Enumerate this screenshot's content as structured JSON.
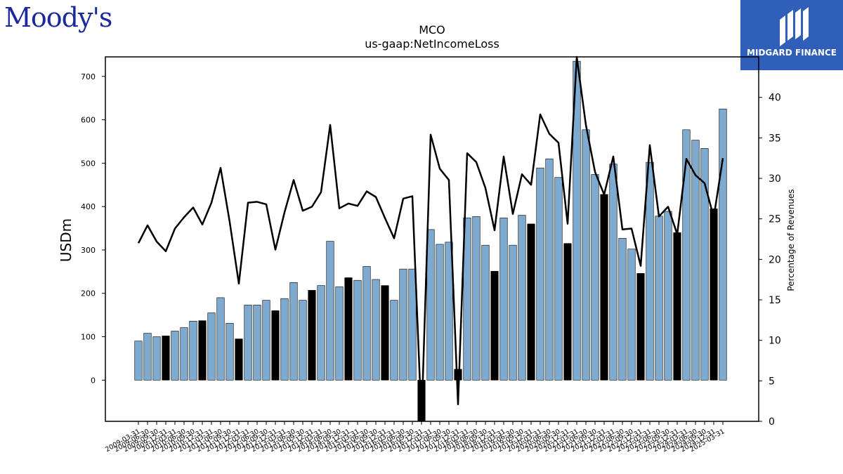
{
  "logos": {
    "left": "Moody's",
    "right": "MIDGARD FINANCE"
  },
  "chart_data": {
    "type": "bar",
    "title": "MCO",
    "subtitle": "us-gaap:NetIncomeLoss",
    "ylabel": "USDm",
    "y2label": "Percentage of Revenues",
    "ylim": [
      -95,
      745
    ],
    "y2lim": [
      0,
      45
    ],
    "y_ticks": [
      0,
      100,
      200,
      300,
      400,
      500,
      600,
      700
    ],
    "y2_ticks": [
      0,
      5,
      10,
      15,
      20,
      25,
      30,
      35,
      40
    ],
    "grid": false,
    "colors": {
      "quarter_bar": "#7eaad0",
      "fy_bar": "#000000",
      "line": "#000000"
    },
    "categories": [
      "2009-03-31",
      "2009-06-30",
      "2009-09-30",
      "2009-12-31",
      "2010-03-31",
      "2010-06-30",
      "2010-09-30",
      "2010-12-31",
      "2011-03-31",
      "2011-06-30",
      "2011-09-30",
      "2011-12-31",
      "2012-03-31",
      "2012-06-30",
      "2012-09-30",
      "2012-12-31",
      "2013-03-31",
      "2013-06-30",
      "2013-09-30",
      "2013-12-31",
      "2014-03-31",
      "2014-06-30",
      "2014-09-30",
      "2014-12-31",
      "2015-03-31",
      "2015-06-30",
      "2015-09-30",
      "2015-12-31",
      "2016-03-31",
      "2016-06-30",
      "2016-09-30",
      "2016-12-31",
      "2017-03-31",
      "2017-06-30",
      "2017-09-30",
      "2017-12-31",
      "2018-03-31",
      "2018-06-30",
      "2018-09-30",
      "2018-12-31",
      "2019-03-31",
      "2019-06-30",
      "2019-09-30",
      "2019-12-31",
      "2020-03-31",
      "2020-06-30",
      "2020-09-30",
      "2020-12-31",
      "2021-03-31",
      "2021-06-30",
      "2021-09-30",
      "2021-12-31",
      "2022-03-31",
      "2022-06-30",
      "2022-09-30",
      "2022-12-31",
      "2023-03-31",
      "2023-06-30",
      "2023-09-30",
      "2023-12-31",
      "2024-03-31",
      "2024-06-30",
      "2024-09-30",
      "2024-12-31",
      "2025-03-31"
    ],
    "x_tick_labels": [
      "2009-03-31",
      "2009-06-30",
      "2009-09-30",
      "2009-12-31",
      "2010-03-31",
      "2010-06-30",
      "2010-09-30",
      "2010-12-31",
      "2011-03-31",
      "2011-06-30",
      "2011-09-30",
      "2011-12-31",
      "2012-03-31",
      "2012-06-30",
      "2012-09-30",
      "2012-12-31",
      "2013-03-31",
      "2013-06-30",
      "2013-09-30",
      "2013-12-31",
      "2014-03-31",
      "2014-06-30",
      "2014-09-30",
      "2014-12-31",
      "2015-03-31",
      "2015-06-30",
      "2015-09-30",
      "2015-12-31",
      "2016-03-31",
      "2016-06-30",
      "2016-09-30",
      "2016-12-31",
      "2017-03-31",
      "2017-06-30",
      "2017-09-30",
      "2017-12-31",
      "2018-03-31",
      "2018-06-30",
      "2018-09-30",
      "2018-12-31",
      "2019-03-31",
      "2019-06-30",
      "2019-09-30",
      "2019-12-31",
      "2020-03-31",
      "2020-06-30",
      "2020-09-30",
      "2020-12-31",
      "2021-03-31",
      "2021-06-30",
      "2021-09-30",
      "2021-12-31",
      "2022-03-31",
      "2022-06-30",
      "2022-09-30",
      "2022-12-31",
      "2023-03-31",
      "2023-06-30",
      "2023-09-30",
      "2023-12-31",
      "2024-03-31",
      "2024-06-30",
      "2024-09-30",
      "2024-12-31",
      "2025-03-31"
    ],
    "values": [
      90,
      108,
      100,
      102,
      113,
      121,
      136,
      137,
      155,
      190,
      131,
      95,
      173,
      173,
      184,
      160,
      188,
      225,
      184,
      207,
      218,
      320,
      215,
      236,
      230,
      262,
      232,
      218,
      184,
      256,
      256,
      -95,
      347,
      313,
      318,
      25,
      374,
      377,
      311,
      251,
      374,
      311,
      380,
      360,
      489,
      510,
      467,
      315,
      735,
      577,
      474,
      428,
      498,
      327,
      302,
      246,
      502,
      378,
      389,
      340,
      577,
      553,
      534,
      395,
      625
    ],
    "is_fiscal_year_end": [
      false,
      false,
      false,
      true,
      false,
      false,
      false,
      true,
      false,
      false,
      false,
      true,
      false,
      false,
      false,
      true,
      false,
      false,
      false,
      true,
      false,
      false,
      false,
      true,
      false,
      false,
      false,
      true,
      false,
      false,
      false,
      true,
      false,
      false,
      false,
      true,
      false,
      false,
      false,
      true,
      false,
      false,
      false,
      true,
      false,
      false,
      false,
      true,
      false,
      false,
      false,
      true,
      false,
      false,
      false,
      true,
      false,
      false,
      false,
      true,
      false,
      false,
      false,
      true,
      false
    ],
    "series": [
      {
        "values": [
          90,
          108,
          100,
          102,
          113,
          121,
          136,
          137,
          155,
          190,
          131,
          95,
          173,
          173,
          184,
          160,
          188,
          225,
          184,
          207,
          218,
          320,
          215,
          236,
          230,
          262,
          232,
          218,
          184,
          256,
          256,
          -95,
          347,
          313,
          318,
          25,
          374,
          377,
          311,
          251,
          374,
          311,
          380,
          360,
          489,
          510,
          467,
          315,
          735,
          577,
          474,
          428,
          498,
          327,
          302,
          246,
          502,
          378,
          389,
          340,
          577,
          553,
          534,
          395,
          625
        ],
        "axis": "left",
        "type": "bar"
      },
      {
        "values": [
          22.0,
          24.2,
          22.2,
          21.0,
          23.8,
          25.2,
          26.4,
          24.3,
          27.0,
          31.3,
          24.6,
          17.0,
          27.0,
          27.1,
          26.8,
          21.2,
          25.8,
          29.8,
          26.0,
          26.5,
          28.3,
          36.6,
          26.3,
          26.9,
          26.6,
          28.4,
          27.7,
          25.1,
          22.6,
          27.5,
          27.8,
          0.0,
          35.4,
          31.2,
          29.8,
          2.1,
          33.1,
          32.0,
          28.8,
          23.6,
          32.7,
          25.6,
          30.5,
          29.2,
          37.9,
          35.5,
          34.4,
          24.4,
          45.0,
          36.6,
          30.8,
          28.0,
          32.7,
          23.7,
          23.8,
          19.2,
          34.1,
          25.3,
          26.5,
          23.1,
          32.4,
          30.4,
          29.4,
          25.2,
          32.5
        ],
        "axis": "right",
        "type": "line"
      }
    ]
  }
}
